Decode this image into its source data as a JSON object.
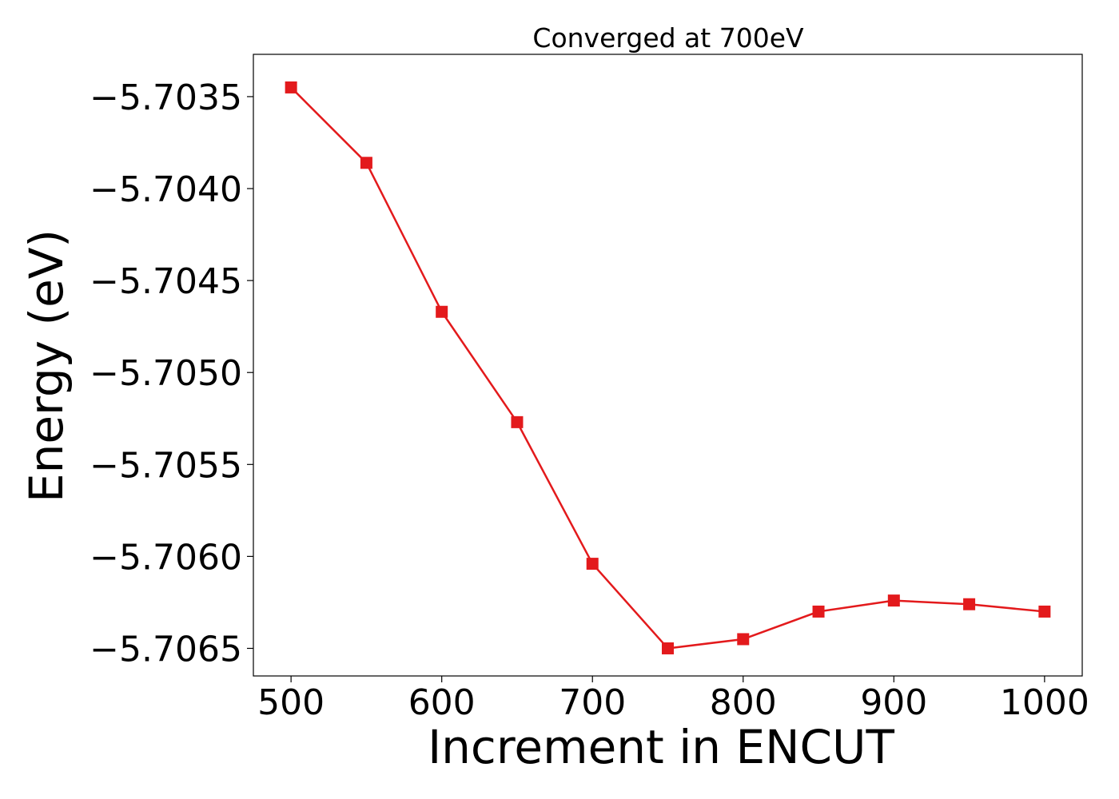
{
  "chart_data": {
    "type": "line",
    "title": "Converged at 700eV",
    "xlabel": "Increment in ENCUT",
    "ylabel": "Energy (eV)",
    "xlim": [
      475,
      1025
    ],
    "ylim": [
      -5.70665,
      -5.70327
    ],
    "xticks": [
      500,
      600,
      700,
      800,
      900,
      1000
    ],
    "xtick_labels": [
      "500",
      "600",
      "700",
      "800",
      "900",
      "1000"
    ],
    "yticks": [
      -5.7035,
      -5.704,
      -5.7045,
      -5.705,
      -5.7055,
      -5.706,
      -5.7065
    ],
    "ytick_labels": [
      "−5.7035",
      "−5.7040",
      "−5.7045",
      "−5.7050",
      "−5.7055",
      "−5.7060",
      "−5.7065"
    ],
    "grid": false,
    "legend": null,
    "series": [
      {
        "color": "#e31a1c",
        "marker": "square",
        "x": [
          500,
          550,
          600,
          650,
          700,
          750,
          800,
          850,
          900,
          950,
          1000
        ],
        "y": [
          -5.70345,
          -5.70386,
          -5.70467,
          -5.70527,
          -5.70604,
          -5.7065,
          -5.70645,
          -5.7063,
          -5.70624,
          -5.70626,
          -5.7063
        ]
      }
    ]
  }
}
